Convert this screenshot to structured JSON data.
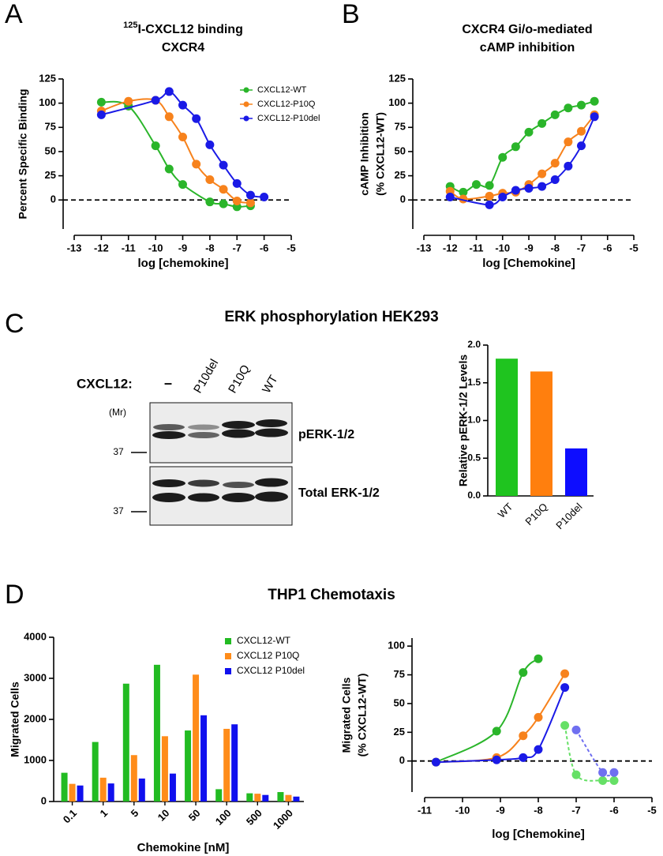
{
  "figure": {
    "panel_labels": [
      "A",
      "B",
      "C",
      "D"
    ],
    "sections": [
      "ERK phosphorylation HEK293",
      "THP1 Chemotaxis"
    ]
  },
  "blot": {
    "treatment_label": "CXCL12:",
    "lanes": [
      "–",
      "P10del",
      "P10Q",
      "WT"
    ],
    "mr_label": "(Mr)",
    "markers": [
      "37",
      "37"
    ],
    "rows": [
      "pERK-1/2",
      "Total ERK-1/2"
    ]
  },
  "chart_data": [
    {
      "type": "scatter",
      "title_superscript": "125",
      "title": [
        "I-CXCL12 binding",
        "CXCR4"
      ],
      "x_label": "log [chemokine]",
      "y_label": [
        "Percent Specific Binding"
      ],
      "series": [
        {
          "name": "CXCL12-WT",
          "color": "#2ab52a",
          "x": [
            -12,
            -11,
            -10,
            -9.5,
            -9,
            -8,
            -7.5,
            -7,
            -6.5
          ],
          "values": [
            101,
            97,
            56,
            32,
            16,
            -2,
            -4,
            -7,
            -6
          ]
        },
        {
          "name": "CXCL12-P10Q",
          "color": "#f7821c",
          "x": [
            -12,
            -11,
            -10,
            -9.5,
            -9,
            -8.5,
            -8,
            -7.5,
            -7,
            -6.5
          ],
          "values": [
            92,
            102,
            103,
            86,
            65,
            37,
            21,
            11,
            -1,
            -3
          ]
        },
        {
          "name": "CXCL12-P10del",
          "color": "#1a1ae6",
          "x": [
            -12,
            -10,
            -9.5,
            -9,
            -8.5,
            -8,
            -7.5,
            -7,
            -6.5,
            -6
          ],
          "values": [
            88,
            103,
            112,
            98,
            84,
            57,
            36,
            17,
            5,
            3
          ]
        }
      ],
      "xlim": [
        -13,
        -5
      ],
      "xticks": [
        -13,
        -12,
        -11,
        -10,
        -9,
        -8,
        -7,
        -6,
        -5
      ],
      "ylim": [
        -30,
        125
      ],
      "yticks": [
        0,
        25,
        50,
        75,
        100,
        125
      ],
      "zero_line": true,
      "legend": "top-right"
    },
    {
      "type": "scatter",
      "title": [
        "CXCR4 Gi/o-mediated",
        "cAMP inhibition"
      ],
      "x_label": "log [Chemokine]",
      "y_label": [
        "cAMP Inhibition",
        "(% CXCL12-WT)"
      ],
      "series": [
        {
          "color": "#2ab52a",
          "x": [
            -12,
            -11.5,
            -11,
            -10.5,
            -10,
            -9.5,
            -9,
            -8.5,
            -8,
            -7.5,
            -7,
            -6.5
          ],
          "values": [
            14,
            8,
            16,
            15,
            44,
            55,
            70,
            79,
            88,
            95,
            98,
            102
          ]
        },
        {
          "color": "#f7821c",
          "x": [
            -12,
            -11.5,
            -10.5,
            -10,
            -9.5,
            -9,
            -8.5,
            -8,
            -7.5,
            -7,
            -6.5
          ],
          "values": [
            9,
            1,
            4,
            7,
            8,
            16,
            27,
            38,
            60,
            71,
            88
          ]
        },
        {
          "color": "#1a1ae6",
          "x": [
            -12,
            -10.5,
            -10,
            -9.5,
            -9,
            -8.5,
            -8,
            -7.5,
            -7,
            -6.5
          ],
          "values": [
            3,
            -5,
            3,
            10,
            12,
            14,
            21,
            35,
            56,
            86
          ]
        }
      ],
      "xlim": [
        -13,
        -5
      ],
      "xticks": [
        -13,
        -12,
        -11,
        -10,
        -9,
        -8,
        -7,
        -6,
        -5
      ],
      "ylim": [
        -30,
        125
      ],
      "yticks": [
        0,
        25,
        50,
        75,
        100,
        125
      ],
      "zero_line": true
    },
    {
      "type": "bar",
      "y_label": [
        "Relative pERK-1/2 Levels"
      ],
      "categories": [
        "WT",
        "P10Q",
        "P10del"
      ],
      "values": [
        1.82,
        1.65,
        0.63
      ],
      "colors": [
        "#1fc41f",
        "#ff7f0e",
        "#0d0dff"
      ],
      "ylim": [
        0,
        2
      ],
      "yticks": [
        {
          "value": 0,
          "label": "0.0"
        },
        0.5,
        {
          "value": 1,
          "label": "1.0"
        },
        1.5,
        {
          "value": 2,
          "label": "2.0"
        }
      ]
    },
    {
      "type": "grouped_bar",
      "x_label": "Chemokine [nM]",
      "y_label": [
        "Migrated Cells"
      ],
      "categories": [
        "0.1",
        "1",
        "5",
        "10",
        "50",
        "100",
        "500",
        "1000"
      ],
      "series": [
        {
          "name": "CXCL12-WT",
          "color": "#22bb22",
          "values": [
            700,
            1450,
            2870,
            3330,
            1730,
            300,
            200,
            230
          ]
        },
        {
          "name": "CXCL12 P10Q",
          "color": "#ff8c1a",
          "values": [
            430,
            580,
            1130,
            1590,
            3090,
            1770,
            190,
            160
          ]
        },
        {
          "name": "CXCL12 P10del",
          "color": "#1010ee",
          "values": [
            390,
            440,
            560,
            680,
            2100,
            1880,
            160,
            120
          ]
        }
      ],
      "ylim": [
        0,
        4000
      ],
      "yticks": [
        0,
        1000,
        2000,
        3000,
        4000
      ],
      "legend": "top-right"
    },
    {
      "type": "scatter",
      "x_label": "log [Chemokine]",
      "y_label": [
        "Migrated Cells",
        "(% CXCL12-WT)"
      ],
      "series": [
        {
          "color": "#2ab52a",
          "x": [
            -10.7,
            -9.1,
            -8.4,
            -8
          ],
          "values": [
            -1,
            26,
            77,
            89
          ]
        },
        {
          "color": "#f7821c",
          "x": [
            -10.7,
            -9.1,
            -8.4,
            -8,
            -7.3
          ],
          "values": [
            -1,
            3,
            22,
            38,
            76
          ]
        },
        {
          "color": "#1a1ae6",
          "x": [
            -10.7,
            -9.1,
            -8.4,
            -8,
            -7.3
          ],
          "values": [
            -1,
            1,
            3,
            10,
            64
          ]
        },
        {
          "color": "#66e066",
          "dashed": true,
          "x": [
            -7.3,
            -7,
            -6.3,
            -6
          ],
          "values": [
            31,
            -12,
            -17,
            -17
          ]
        },
        {
          "color": "#6f6ff0",
          "dashed": true,
          "x": [
            -7,
            -6.3,
            -6
          ],
          "values": [
            27,
            -10,
            -10
          ]
        }
      ],
      "xlim": [
        -11,
        -5
      ],
      "xticks": [
        -11,
        -10,
        -9,
        -8,
        -7,
        -6,
        -5
      ],
      "ylim": [
        -27,
        107
      ],
      "yticks": [
        0,
        25,
        50,
        75,
        100
      ],
      "zero_line": true
    }
  ]
}
